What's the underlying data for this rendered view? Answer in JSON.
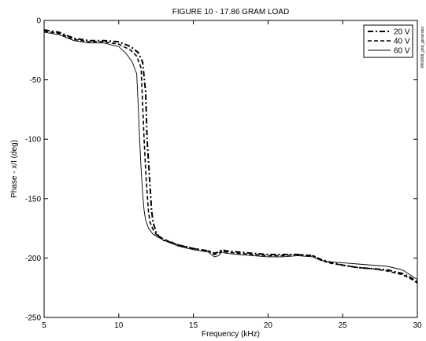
{
  "chart_data": {
    "type": "line",
    "title": "FIGURE 10 - 17.86 GRAM LOAD",
    "xlabel": "Frequency (kHz)",
    "ylabel": "Phase - x/I (deg)",
    "side_note": "RK0868_plot_generator",
    "xlim": [
      5,
      30
    ],
    "ylim": [
      -250,
      0
    ],
    "xticks": [
      5,
      10,
      15,
      20,
      25,
      30
    ],
    "yticks": [
      0,
      -50,
      -100,
      -150,
      -200,
      -250
    ],
    "grid": false,
    "legend_position": "top-right",
    "series": [
      {
        "name": "20 V",
        "style": "dash-dot",
        "x": [
          5,
          6,
          7,
          8,
          9,
          10,
          10.8,
          11.3,
          11.6,
          11.8,
          11.9,
          12.0,
          12.1,
          12.2,
          12.3,
          12.5,
          12.7,
          13,
          14,
          15,
          16,
          16.4,
          16.7,
          16.9,
          17.2,
          18,
          19,
          20,
          21,
          22,
          23,
          23.5,
          24,
          25,
          26,
          27,
          28,
          29,
          29.5,
          30
        ],
        "y": [
          -8,
          -10,
          -15,
          -17,
          -17,
          -18,
          -22,
          -27,
          -35,
          -60,
          -100,
          -120,
          -140,
          -160,
          -170,
          -178,
          -182,
          -185,
          -189,
          -192,
          -194,
          -196,
          -195,
          -193,
          -194,
          -195,
          -196,
          -197,
          -197,
          -197,
          -198,
          -201,
          -203,
          -206,
          -208,
          -209,
          -210,
          -213,
          -216,
          -220
        ]
      },
      {
        "name": "40 V",
        "style": "dashed",
        "x": [
          5,
          6,
          7,
          8,
          9,
          10,
          10.8,
          11.2,
          11.5,
          11.6,
          11.7,
          11.8,
          11.9,
          12.0,
          12.1,
          12.3,
          12.5,
          13,
          14,
          15,
          16,
          16.4,
          16.7,
          16.9,
          17.2,
          18,
          19,
          20,
          21,
          22,
          23,
          23.5,
          24,
          25,
          26,
          27,
          28,
          29,
          29.5,
          30
        ],
        "y": [
          -9,
          -11,
          -16,
          -18,
          -18,
          -20,
          -25,
          -30,
          -40,
          -70,
          -100,
          -125,
          -145,
          -162,
          -170,
          -176,
          -180,
          -184,
          -189,
          -192,
          -194,
          -197,
          -196,
          -194,
          -195,
          -196,
          -197,
          -198,
          -198,
          -197,
          -198,
          -201,
          -204,
          -206,
          -208,
          -209,
          -211,
          -214,
          -217,
          -221
        ]
      },
      {
        "name": "60 V",
        "style": "solid",
        "x": [
          5,
          6,
          7,
          8,
          9,
          10,
          10.5,
          10.9,
          11.2,
          11.3,
          11.4,
          11.5,
          11.6,
          11.7,
          11.8,
          12.0,
          12.3,
          13,
          14,
          15,
          16,
          16.4,
          16.7,
          16.9,
          17.2,
          18,
          19,
          20,
          21,
          22,
          23,
          23.5,
          24,
          25,
          26,
          27,
          28,
          29,
          29.5,
          30
        ],
        "y": [
          -10,
          -12,
          -17,
          -19,
          -19,
          -22,
          -28,
          -35,
          -45,
          -70,
          -100,
          -125,
          -145,
          -160,
          -168,
          -175,
          -180,
          -185,
          -190,
          -193,
          -195,
          -199,
          -198,
          -195,
          -196,
          -197,
          -198,
          -199,
          -199,
          -198,
          -199,
          -202,
          -203,
          -204,
          -205,
          -206,
          -207,
          -210,
          -214,
          -218
        ]
      }
    ]
  }
}
